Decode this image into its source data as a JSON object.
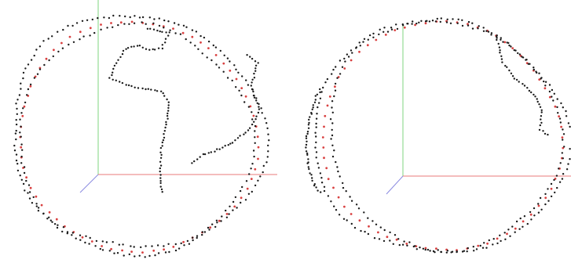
{
  "colors": {
    "background": "#ffffff",
    "x_axis": "#e87a7a",
    "y_axis": "#7fd47f",
    "z_axis": "#8a8ae0",
    "measured_points": "#1a1a1a",
    "reference_points": "#d94040"
  },
  "panels": [
    {
      "id": "left",
      "description_kind": "3d-point-cloud",
      "seed": 11,
      "has_interior_trace": true
    },
    {
      "id": "right",
      "description_kind": "3d-point-cloud",
      "seed": 29,
      "has_interior_trace": false
    }
  ]
}
